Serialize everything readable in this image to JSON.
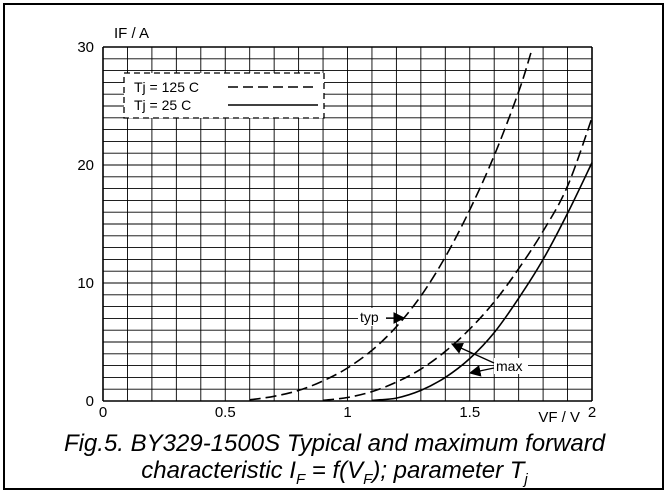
{
  "chart_data": {
    "type": "line",
    "title": "",
    "xlabel": "VF / V",
    "ylabel": "IF / A",
    "xlim": [
      0,
      2
    ],
    "ylim": [
      0,
      30
    ],
    "x_ticks": [
      "0",
      "0.5",
      "1",
      "1.5",
      "2"
    ],
    "y_ticks": [
      "0",
      "10",
      "20",
      "30"
    ],
    "grid": true,
    "legend_position": "top-left",
    "legend": [
      {
        "label": "Tj = 125 C",
        "style": "dashed"
      },
      {
        "label": "Tj = 25 C",
        "style": "solid"
      }
    ],
    "series": [
      {
        "name": "Tj = 125 C",
        "style": "dashed",
        "x": [
          0.6,
          0.7,
          0.8,
          0.9,
          1.0,
          1.1,
          1.2,
          1.3,
          1.4,
          1.5,
          1.6,
          1.7,
          1.75
        ],
        "y": [
          0.1,
          0.4,
          0.9,
          1.7,
          2.8,
          4.3,
          6.3,
          8.9,
          12.2,
          16.2,
          20.8,
          26.2,
          29.5
        ]
      },
      {
        "name": "Tj = 125 C",
        "style": "dashed",
        "x": [
          0.9,
          1.0,
          1.1,
          1.2,
          1.3,
          1.4,
          1.5,
          1.6,
          1.7,
          1.8,
          1.9,
          2.0
        ],
        "y": [
          0.05,
          0.3,
          0.8,
          1.6,
          2.7,
          4.2,
          6.1,
          8.4,
          11.2,
          14.4,
          18.2,
          24.0
        ]
      },
      {
        "name": "Tj = 25 C",
        "style": "solid",
        "x": [
          1.1,
          1.2,
          1.3,
          1.4,
          1.5,
          1.6,
          1.7,
          1.8,
          1.9,
          2.0
        ],
        "y": [
          0.05,
          0.25,
          0.9,
          2.0,
          3.6,
          5.8,
          8.7,
          12.0,
          15.9,
          20.2
        ]
      }
    ],
    "annotations": [
      {
        "text": "typ"
      },
      {
        "text": "max"
      }
    ]
  },
  "caption": {
    "line1": "Fig.5.  BY329-1500S Typical and maximum forward",
    "line2_pre": "characteristic I",
    "line2_sub1": "F",
    "line2_mid": " = f(V",
    "line2_sub2": "F",
    "line2_post": "); parameter T",
    "line2_sub3": "j"
  }
}
